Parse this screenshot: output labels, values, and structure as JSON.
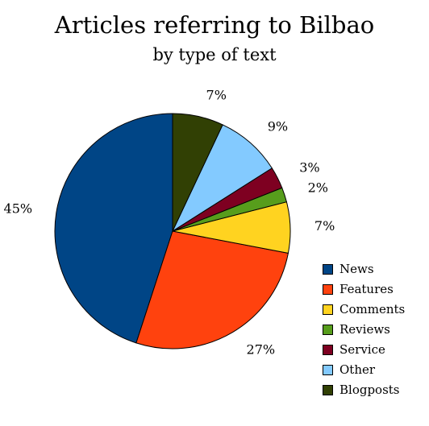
{
  "chart_data": {
    "type": "pie",
    "title": "Articles referring to Bilbao",
    "subtitle": "by type of text",
    "slices": [
      {
        "label": "News",
        "value": 45,
        "display": "45%",
        "color": "#004586"
      },
      {
        "label": "Features",
        "value": 27,
        "display": "27%",
        "color": "#ff420e"
      },
      {
        "label": "Comments",
        "value": 7,
        "display": "7%",
        "color": "#ffd320"
      },
      {
        "label": "Reviews",
        "value": 2,
        "display": "2%",
        "color": "#579d1c"
      },
      {
        "label": "Service",
        "value": 3,
        "display": "3%",
        "color": "#7e0021"
      },
      {
        "label": "Other",
        "value": 9,
        "display": "9%",
        "color": "#83caff"
      },
      {
        "label": "Blogposts",
        "value": 7,
        "display": "7%",
        "color": "#314004"
      }
    ],
    "legend_position": "bottom-right"
  }
}
